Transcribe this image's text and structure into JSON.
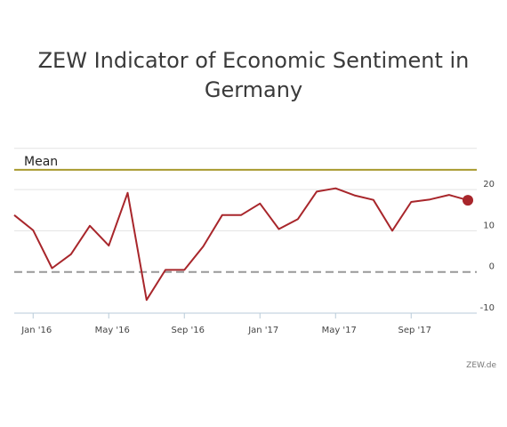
{
  "chart_data": {
    "type": "line",
    "title": "ZEW Indicator of Economic Sentiment in Germany",
    "x": [
      "Dec '15",
      "Jan '16",
      "Feb '16",
      "Mar '16",
      "Apr '16",
      "May '16",
      "Jun '16",
      "Jul '16",
      "Aug '16",
      "Sep '16",
      "Oct '16",
      "Nov '16",
      "Dec '16",
      "Jan '17",
      "Feb '17",
      "Mar '17",
      "Apr '17",
      "May '17",
      "Jun '17",
      "Jul '17",
      "Aug '17",
      "Sep '17",
      "Oct '17",
      "Nov '17",
      "Dec '17"
    ],
    "x_tick_labels": [
      "Jan '16",
      "May '16",
      "Sep '16",
      "Jan '17",
      "May '17",
      "Sep '17"
    ],
    "x_tick_indices": [
      1,
      5,
      9,
      13,
      17,
      21
    ],
    "series": [
      {
        "values": [
          13.8,
          10.1,
          0.9,
          4.3,
          11.2,
          6.4,
          19.2,
          -6.8,
          0.5,
          0.5,
          6.2,
          13.8,
          13.8,
          16.6,
          10.4,
          12.8,
          19.5,
          20.3,
          18.6,
          17.5,
          10.0,
          17.0,
          17.6,
          18.7,
          17.4
        ],
        "color": "#a8262b"
      }
    ],
    "mean_line": {
      "label": "Mean",
      "value": 24.8,
      "color": "#a89a2e"
    },
    "zero_line": {
      "value": 0,
      "style": "dashed",
      "color": "#999999"
    },
    "ylim": [
      -10,
      30
    ],
    "y_ticks": [
      20,
      10,
      0,
      -10
    ],
    "y_tick_labels": [
      "20",
      "10",
      "0",
      "-10"
    ],
    "y_axis_position": "right",
    "grid": true,
    "last_point_marker": true,
    "xlabel": "",
    "ylabel": ""
  },
  "credit": "ZEW.de"
}
